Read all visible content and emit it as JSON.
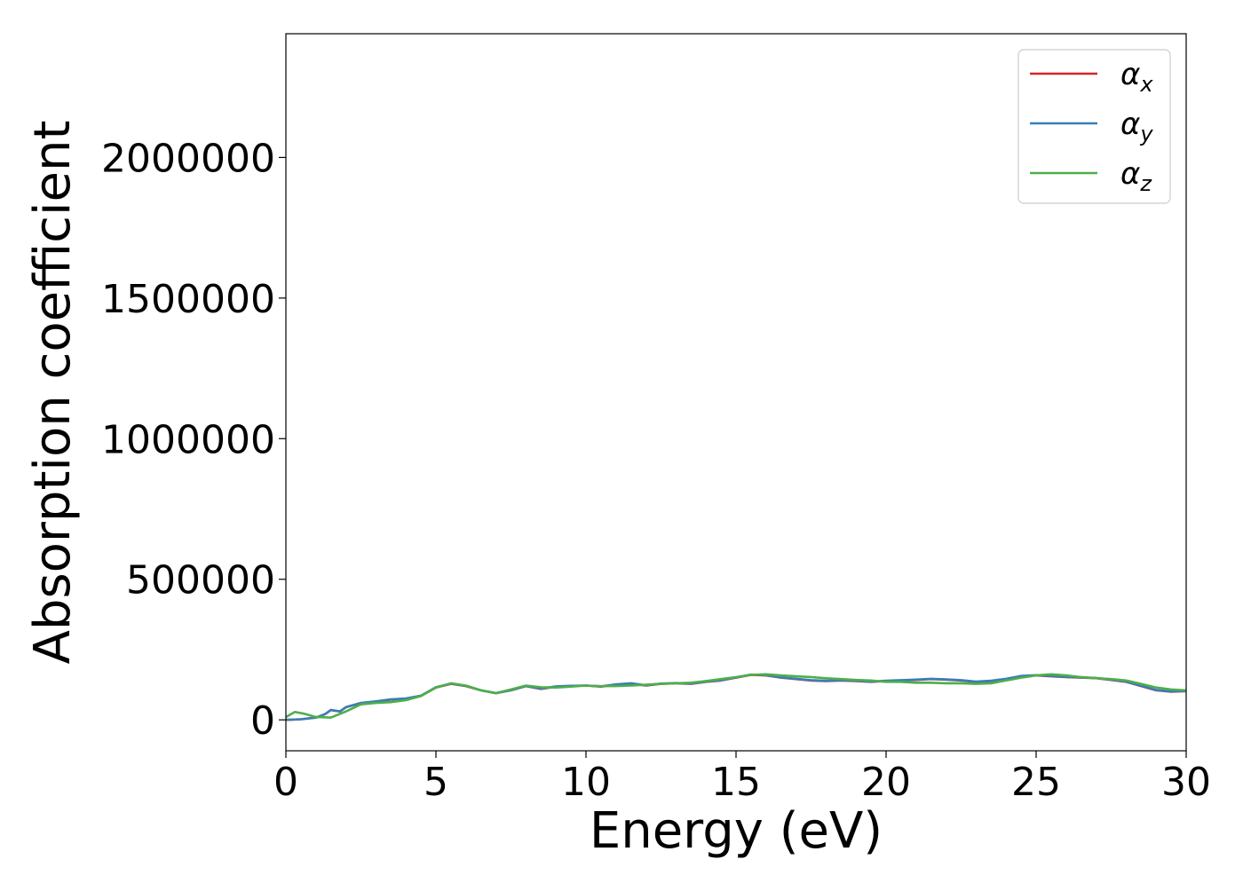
{
  "chart_data": {
    "type": "line",
    "title": "",
    "xlabel": "Energy (eV)",
    "ylabel": "Absorption coefficient",
    "xlim": [
      0,
      30
    ],
    "ylim": [
      -110000,
      2440000
    ],
    "xticks": [
      0,
      5,
      10,
      15,
      20,
      25,
      30
    ],
    "xtick_labels": [
      "0",
      "5",
      "10",
      "15",
      "20",
      "25",
      "30"
    ],
    "yticks": [
      0,
      500000,
      1000000,
      1500000,
      2000000
    ],
    "ytick_labels": [
      "0",
      "500000",
      "1000000",
      "1500000",
      "2000000"
    ],
    "grid": false,
    "legend_position": "top-right",
    "series": [
      {
        "name": "α_x",
        "legend_main": "α",
        "legend_sub": "x",
        "color": "#d62728",
        "x": [
          0,
          0.5,
          1.0,
          1.3,
          1.5,
          1.8,
          2.0,
          2.5,
          3.0,
          3.5,
          4.0,
          4.5,
          5.0,
          5.5,
          6.0,
          6.5,
          7.0,
          7.5,
          8.0,
          8.5,
          9.0,
          9.5,
          10.0,
          10.5,
          11.0,
          11.5,
          12.0,
          12.5,
          13.0,
          13.5,
          14.0,
          14.5,
          15.0,
          15.5,
          16.0,
          16.5,
          17.0,
          17.5,
          18.0,
          18.5,
          19.0,
          19.5,
          20.0,
          20.5,
          21.0,
          21.5,
          22.0,
          22.5,
          23.0,
          23.5,
          24.0,
          24.5,
          25.0,
          25.5,
          26.0,
          26.5,
          27.0,
          27.5,
          28.0,
          28.5,
          29.0,
          29.5,
          30.0
        ],
        "values": [
          0,
          2000,
          8000,
          20000,
          35000,
          30000,
          45000,
          60000,
          65000,
          72000,
          75000,
          85000,
          115000,
          128000,
          120000,
          105000,
          95000,
          105000,
          120000,
          110000,
          118000,
          120000,
          122000,
          118000,
          125000,
          128000,
          122000,
          128000,
          130000,
          128000,
          135000,
          140000,
          150000,
          160000,
          158000,
          150000,
          145000,
          140000,
          138000,
          140000,
          138000,
          135000,
          138000,
          140000,
          142000,
          145000,
          143000,
          140000,
          135000,
          138000,
          145000,
          155000,
          158000,
          155000,
          152000,
          150000,
          148000,
          142000,
          135000,
          120000,
          105000,
          100000,
          102000
        ]
      },
      {
        "name": "α_y",
        "legend_main": "α",
        "legend_sub": "y",
        "color": "#377eb8",
        "x": [
          0,
          0.5,
          1.0,
          1.3,
          1.5,
          1.8,
          2.0,
          2.5,
          3.0,
          3.5,
          4.0,
          4.5,
          5.0,
          5.5,
          6.0,
          6.5,
          7.0,
          7.5,
          8.0,
          8.5,
          9.0,
          9.5,
          10.0,
          10.5,
          11.0,
          11.5,
          12.0,
          12.5,
          13.0,
          13.5,
          14.0,
          14.5,
          15.0,
          15.5,
          16.0,
          16.5,
          17.0,
          17.5,
          18.0,
          18.5,
          19.0,
          19.5,
          20.0,
          20.5,
          21.0,
          21.5,
          22.0,
          22.5,
          23.0,
          23.5,
          24.0,
          24.5,
          25.0,
          25.5,
          26.0,
          26.5,
          27.0,
          27.5,
          28.0,
          28.5,
          29.0,
          29.5,
          30.0
        ],
        "values": [
          0,
          2000,
          8000,
          20000,
          35000,
          30000,
          45000,
          60000,
          66000,
          73000,
          76000,
          86000,
          116000,
          129000,
          121000,
          105000,
          95000,
          106000,
          120000,
          111000,
          119000,
          121000,
          122000,
          119000,
          126000,
          130000,
          123000,
          129000,
          131000,
          129000,
          136000,
          141000,
          151000,
          161000,
          159000,
          151000,
          146000,
          141000,
          139000,
          141000,
          139000,
          136000,
          139000,
          141000,
          143000,
          146000,
          144000,
          141000,
          136000,
          139000,
          146000,
          156000,
          159000,
          156000,
          153000,
          151000,
          149000,
          143000,
          136000,
          121000,
          106000,
          101000,
          103000
        ]
      },
      {
        "name": "α_z",
        "legend_main": "α",
        "legend_sub": "z",
        "color": "#4daf4a",
        "x": [
          0,
          0.3,
          0.6,
          1.0,
          1.5,
          2.0,
          2.5,
          3.0,
          3.5,
          4.0,
          4.5,
          5.0,
          5.5,
          6.0,
          6.5,
          7.0,
          7.5,
          8.0,
          8.5,
          9.0,
          9.5,
          10.0,
          10.5,
          11.0,
          11.5,
          12.0,
          12.5,
          13.0,
          13.5,
          14.0,
          14.5,
          15.0,
          15.5,
          16.0,
          16.5,
          17.0,
          17.5,
          18.0,
          18.5,
          19.0,
          19.5,
          20.0,
          20.5,
          21.0,
          21.5,
          22.0,
          22.5,
          23.0,
          23.5,
          24.0,
          24.5,
          25.0,
          25.5,
          26.0,
          26.5,
          27.0,
          27.5,
          28.0,
          28.5,
          29.0,
          29.5,
          30.0
        ],
        "values": [
          10000,
          28000,
          22000,
          10000,
          8000,
          30000,
          55000,
          60000,
          63000,
          70000,
          85000,
          115000,
          130000,
          122000,
          105000,
          95000,
          108000,
          122000,
          116000,
          115000,
          118000,
          122000,
          120000,
          120000,
          122000,
          125000,
          128000,
          130000,
          132000,
          138000,
          145000,
          152000,
          160000,
          162000,
          158000,
          155000,
          152000,
          148000,
          145000,
          142000,
          140000,
          135000,
          135000,
          132000,
          132000,
          130000,
          130000,
          128000,
          130000,
          140000,
          150000,
          158000,
          162000,
          158000,
          152000,
          148000,
          145000,
          140000,
          128000,
          115000,
          108000,
          105000
        ]
      }
    ]
  }
}
